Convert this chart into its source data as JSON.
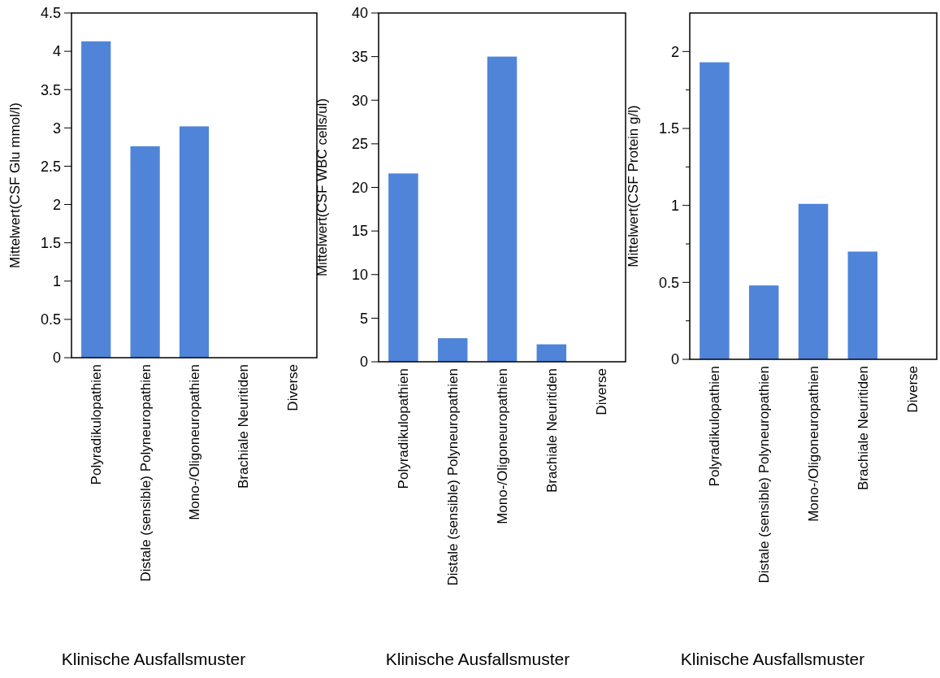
{
  "chart_data": [
    {
      "type": "bar",
      "xlabel": "Klinische Ausfallsmuster",
      "ylabel": "Mittelwert(CSF Glu mmol/l)",
      "categories": [
        "Polyradikulopathien",
        "Distale (sensible) Polyneuropathien",
        "Mono-/Oligoneuropathien",
        "Brachiale Neuritiden",
        "Diverse"
      ],
      "values": [
        4.13,
        2.76,
        3.02,
        null,
        null
      ],
      "color": "#4f84d9",
      "ylim": [
        0,
        4.5
      ],
      "yticks": [
        0,
        0.5,
        1,
        1.5,
        2,
        2.5,
        3,
        3.5,
        4,
        4.5
      ],
      "grid": false
    },
    {
      "type": "bar",
      "xlabel": "Klinische Ausfallsmuster",
      "ylabel": "Mittelwert(CSF WBC cells/ul)",
      "categories": [
        "Polyradikulopathien",
        "Distale (sensible) Polyneuropathien",
        "Mono-/Oligoneuropathien",
        "Brachiale Neuritiden",
        "Diverse"
      ],
      "values": [
        21.6,
        2.7,
        35.0,
        2.0,
        null
      ],
      "color": "#4f84d9",
      "ylim": [
        0,
        40
      ],
      "yticks": [
        0,
        5,
        10,
        15,
        20,
        25,
        30,
        35,
        40
      ],
      "grid": false
    },
    {
      "type": "bar",
      "xlabel": "Klinische Ausfallsmuster",
      "ylabel": "Mittelwert(CSF Protein g/l)",
      "categories": [
        "Polyradikulopathien",
        "Distale (sensible) Polyneuropathien",
        "Mono-/Oligoneuropathien",
        "Brachiale Neuritiden",
        "Diverse"
      ],
      "values": [
        1.93,
        0.48,
        1.01,
        0.7,
        null
      ],
      "color": "#4f84d9",
      "ylim": [
        0,
        2.25
      ],
      "yticks": [
        0,
        {
          "value": 0.25,
          "label": null
        },
        0.5,
        {
          "value": 0.75,
          "label": null
        },
        1,
        {
          "value": 1.25,
          "label": null
        },
        1.5,
        {
          "value": 1.75,
          "label": null
        },
        2
      ],
      "grid": false
    }
  ]
}
